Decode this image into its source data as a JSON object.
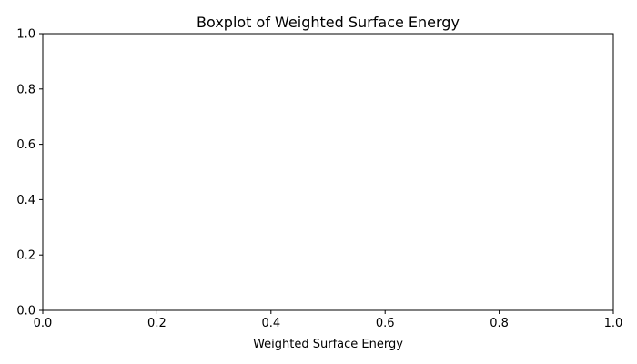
{
  "chart_data": {
    "type": "boxplot",
    "title": "Boxplot of Weighted Surface Energy",
    "xlabel": "Weighted Surface Energy",
    "ylabel": "",
    "xlim": [
      0.0,
      1.0
    ],
    "ylim": [
      0.0,
      1.0
    ],
    "x_ticks": [
      "0.0",
      "0.2",
      "0.4",
      "0.6",
      "0.8",
      "1.0"
    ],
    "y_ticks": [
      "0.0",
      "0.2",
      "0.4",
      "0.6",
      "0.8",
      "1.0"
    ],
    "grid": false,
    "series": []
  },
  "colors": {
    "axis": "#000000",
    "background": "#ffffff"
  }
}
